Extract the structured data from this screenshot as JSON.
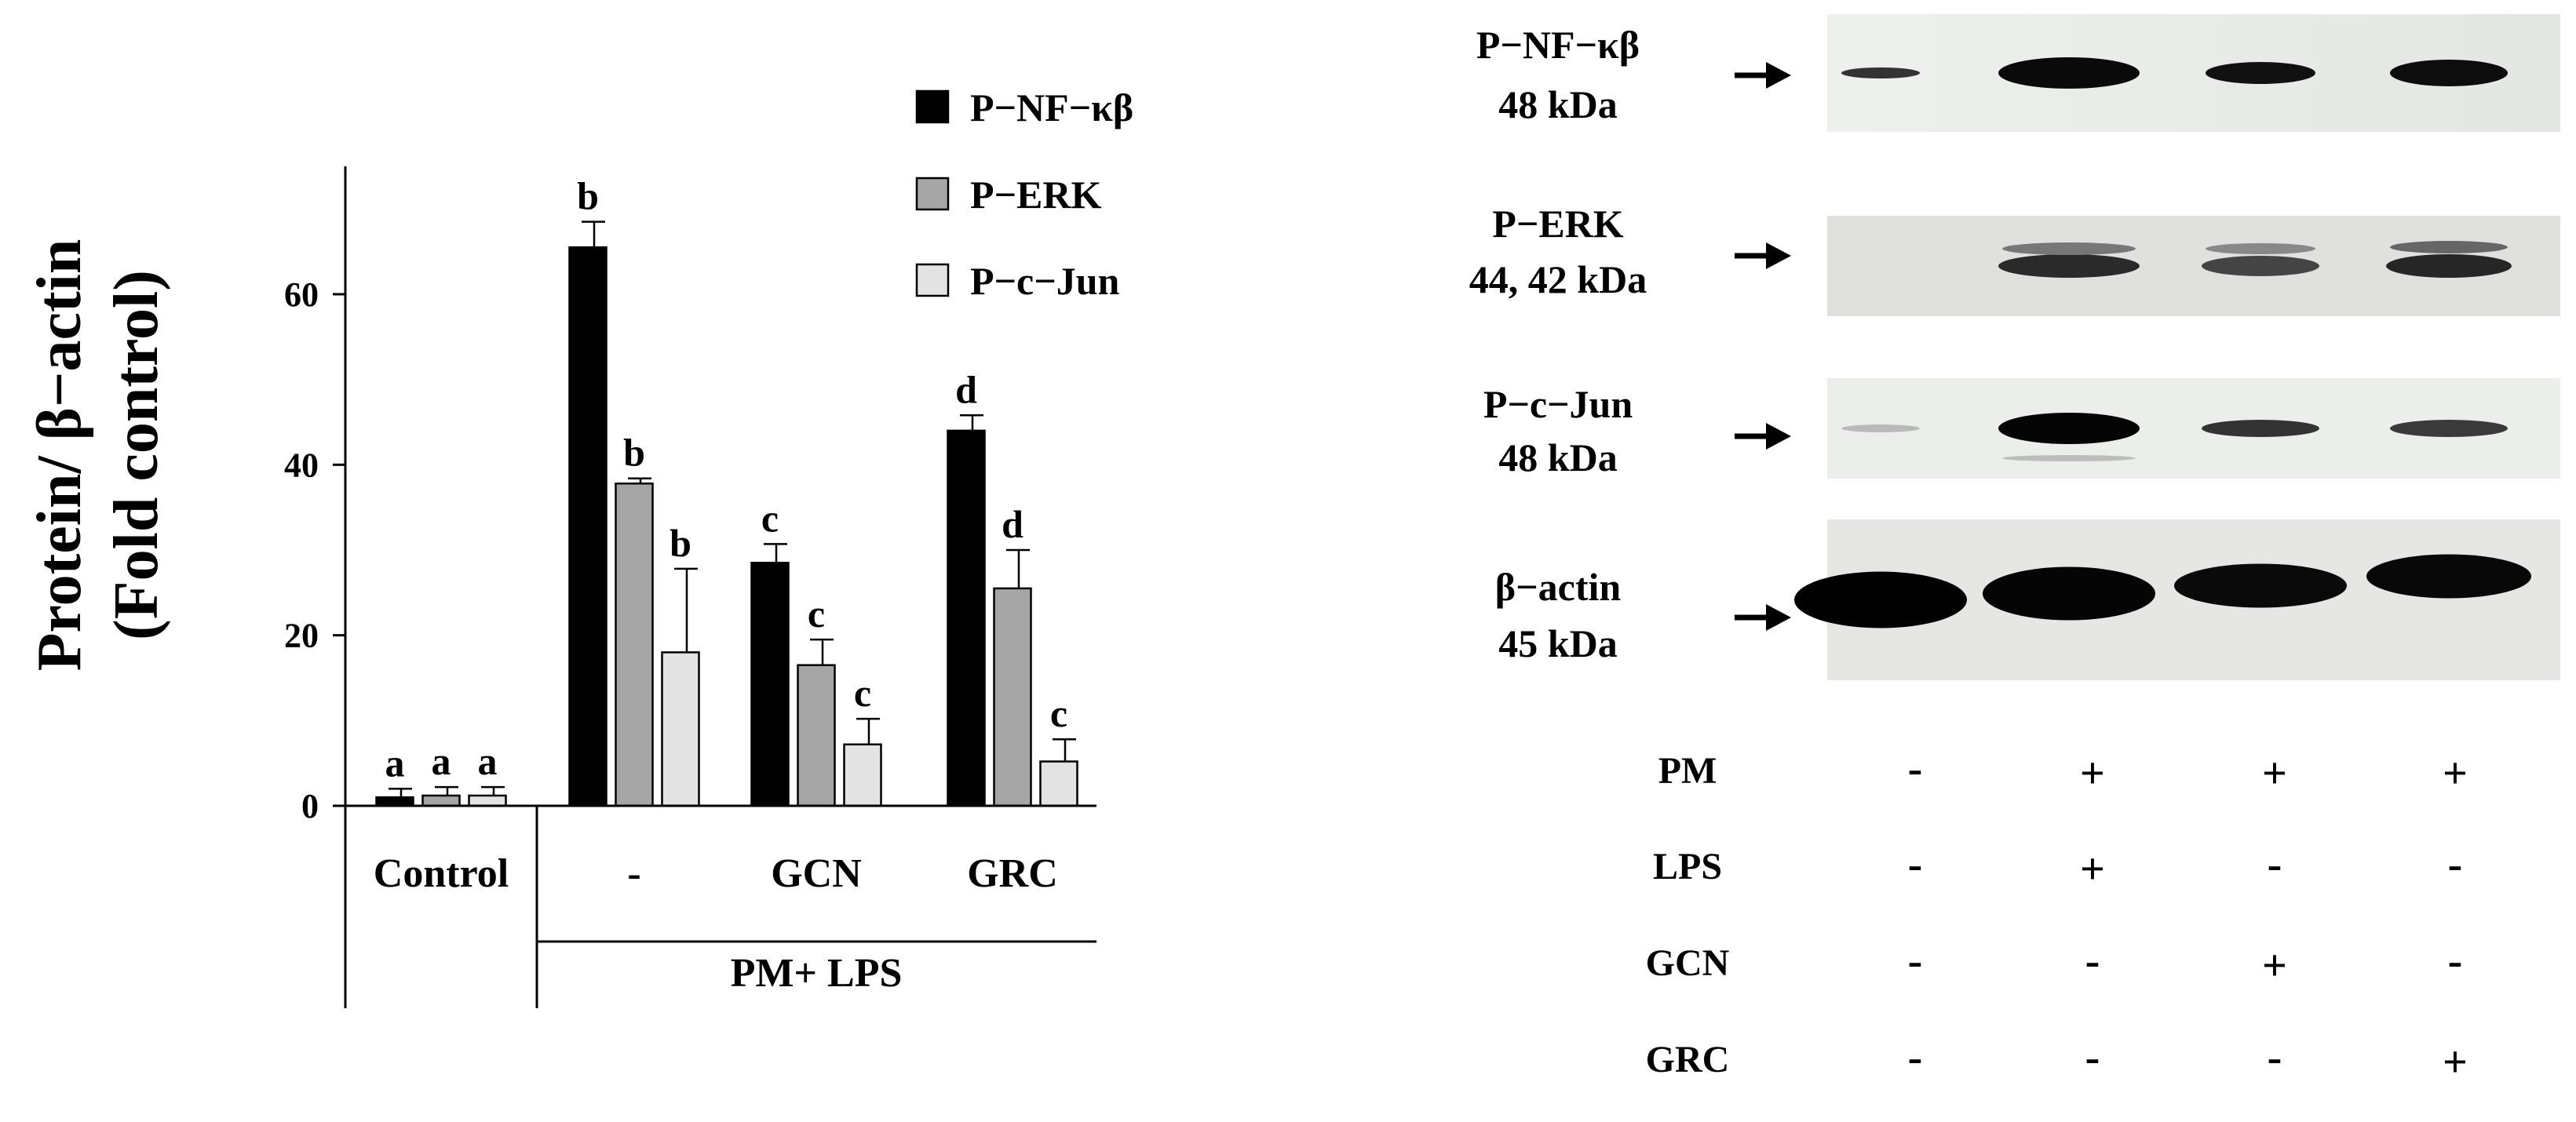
{
  "chart_data": [
    {
      "type": "bar",
      "ylabel": "Protein/ β−actin",
      "ylabel_line2": "(Fold control)",
      "categories": [
        "Control",
        "-",
        "GCN",
        "GRC"
      ],
      "group_label": "PM+ LPS",
      "ylim": [
        0,
        75
      ],
      "yticks": [
        "0",
        "20",
        "40",
        "60"
      ],
      "grid": false,
      "legend_position": "top-right",
      "series": [
        {
          "name": "P−NF−κβ",
          "color": "#000000",
          "values": [
            1,
            65.5,
            28.5,
            44
          ],
          "errors": [
            1,
            3,
            2.2,
            1.8
          ],
          "letters": [
            "a",
            "b",
            "c",
            "d"
          ]
        },
        {
          "name": "P−ERK",
          "color": "#a6a6a6",
          "values": [
            1.2,
            37.8,
            16.5,
            25.5
          ],
          "errors": [
            1,
            0.6,
            3,
            4.5
          ],
          "letters": [
            "a",
            "b",
            "c",
            "d"
          ]
        },
        {
          "name": "P−c−Jun",
          "color": "#e3e3e3",
          "values": [
            1.2,
            18,
            7.2,
            5.2
          ],
          "errors": [
            1,
            9.8,
            3,
            2.6
          ],
          "letters": [
            "a",
            "b",
            "c",
            "c"
          ]
        }
      ]
    },
    {
      "type": "table",
      "blots": [
        {
          "name": "P−NF−κβ",
          "size": "48 kDa"
        },
        {
          "name": "P−ERK",
          "size": "44, 42 kDa"
        },
        {
          "name": "P−c−Jun",
          "size": "48 kDa"
        },
        {
          "name": "β−actin",
          "size": "45 kDa"
        }
      ],
      "treatments": [
        {
          "name": "PM",
          "values": [
            "-",
            "+",
            "+",
            "+"
          ]
        },
        {
          "name": "LPS",
          "values": [
            "-",
            "+",
            "-",
            "-"
          ]
        },
        {
          "name": "GCN",
          "values": [
            "-",
            "-",
            "+",
            "-"
          ]
        },
        {
          "name": "GRC",
          "values": [
            "-",
            "-",
            "-",
            "+"
          ]
        }
      ]
    }
  ]
}
